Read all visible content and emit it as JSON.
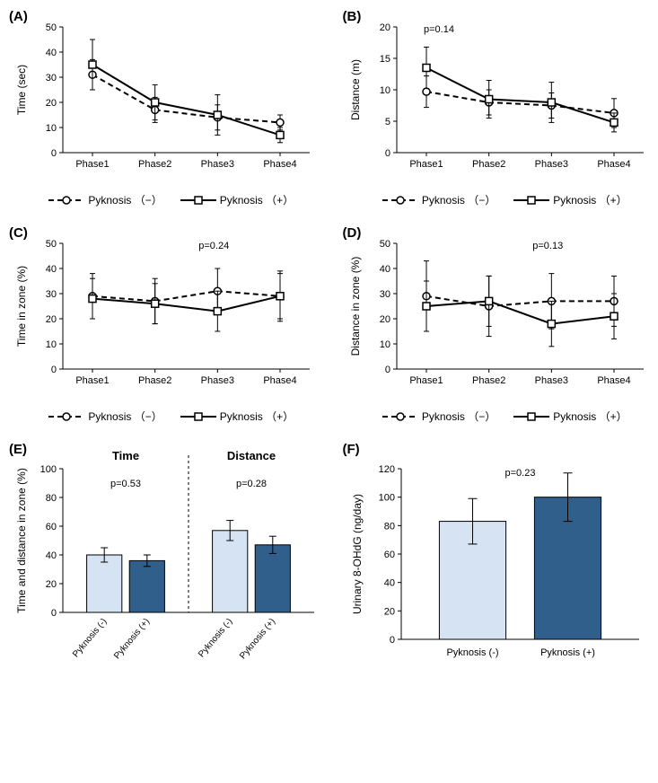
{
  "figure": {
    "background_color": "#ffffff",
    "text_color": "#000000",
    "font_family": "Arial",
    "panel_label_fontsize": 15,
    "axis_label_fontsize": 12,
    "tick_label_fontsize": 11,
    "p_value_fontsize": 11,
    "legend_fontsize": 12
  },
  "legend_common": {
    "series_neg": {
      "label": "Pyknosis （−）",
      "marker": "circle",
      "line_dash": "6,4",
      "line_width": 2,
      "color": "#000000"
    },
    "series_pos": {
      "label": "Pyknosis （+）",
      "marker": "square",
      "line_dash": "none",
      "line_width": 2,
      "color": "#000000"
    }
  },
  "panels": {
    "A": {
      "label": "(A)",
      "type": "line",
      "ylabel": "Time (sec)",
      "categories": [
        "Phase1",
        "Phase2",
        "Phase3",
        "Phase4"
      ],
      "ylim": [
        0,
        50
      ],
      "ytick_step": 10,
      "series": {
        "neg": {
          "values": [
            31,
            17,
            14,
            12
          ],
          "err": [
            6,
            5,
            5,
            3
          ]
        },
        "pos": {
          "values": [
            35,
            20,
            15,
            7
          ],
          "err": [
            10,
            7,
            8,
            3
          ]
        }
      }
    },
    "B": {
      "label": "(B)",
      "type": "line",
      "ylabel": "Distance (m)",
      "p_value": "p=0.14",
      "p_pos": "top-left",
      "categories": [
        "Phase1",
        "Phase2",
        "Phase3",
        "Phase4"
      ],
      "ylim": [
        0,
        20
      ],
      "ytick_step": 5,
      "series": {
        "neg": {
          "values": [
            9.7,
            8.0,
            7.5,
            6.3
          ],
          "err": [
            2.5,
            2.0,
            2.0,
            2.3
          ]
        },
        "pos": {
          "values": [
            13.5,
            8.5,
            8.0,
            4.8
          ],
          "err": [
            3.3,
            3.0,
            3.2,
            1.5
          ]
        }
      }
    },
    "C": {
      "label": "(C)",
      "type": "line",
      "ylabel": "Time in zone (%)",
      "p_value": "p=0.24",
      "p_pos": "top-center",
      "categories": [
        "Phase1",
        "Phase2",
        "Phase3",
        "Phase4"
      ],
      "ylim": [
        0,
        50
      ],
      "ytick_step": 10,
      "series": {
        "neg": {
          "values": [
            29,
            27,
            31,
            29
          ],
          "err": [
            9,
            9,
            9,
            10
          ]
        },
        "pos": {
          "values": [
            28,
            26,
            23,
            29
          ],
          "err": [
            8,
            8,
            8,
            9
          ]
        }
      }
    },
    "D": {
      "label": "(D)",
      "type": "line",
      "ylabel": "Distance in zone (%)",
      "p_value": "p=0.13",
      "p_pos": "top-center",
      "categories": [
        "Phase1",
        "Phase2",
        "Phase3",
        "Phase4"
      ],
      "ylim": [
        0,
        50
      ],
      "ytick_step": 10,
      "series": {
        "neg": {
          "values": [
            29,
            25,
            27,
            27
          ],
          "err": [
            14,
            12,
            11,
            10
          ]
        },
        "pos": {
          "values": [
            25,
            27,
            18,
            21
          ],
          "err": [
            10,
            10,
            9,
            9
          ]
        }
      }
    },
    "E": {
      "label": "(E)",
      "type": "bar",
      "ylabel": "Time and distance in zone (%)",
      "ylim": [
        0,
        100
      ],
      "ytick_step": 20,
      "groups": [
        {
          "heading": "Time",
          "p_value": "p=0.53",
          "bars": [
            {
              "label": "Pyknosis (-)",
              "value": 40,
              "err": 5,
              "color": "#d6e3f3"
            },
            {
              "label": "Pyknosis (+)",
              "value": 36,
              "err": 4,
              "color": "#2f5f8a"
            }
          ]
        },
        {
          "heading": "Distance",
          "p_value": "p=0.28",
          "bars": [
            {
              "label": "Pyknosis (-)",
              "value": 57,
              "err": 7,
              "color": "#d6e3f3"
            },
            {
              "label": "Pyknosis (+)",
              "value": 47,
              "err": 6,
              "color": "#2f5f8a"
            }
          ]
        }
      ],
      "bar_width": 0.65,
      "bar_border": "#000000"
    },
    "F": {
      "label": "(F)",
      "type": "bar",
      "ylabel": "Urinary 8-OHdG (ng/day)",
      "p_value": "p=0.23",
      "ylim": [
        0,
        120
      ],
      "ytick_step": 20,
      "bars": [
        {
          "label": "Pyknosis (-)",
          "value": 83,
          "err": 16,
          "color": "#d6e3f3"
        },
        {
          "label": "Pyknosis (+)",
          "value": 100,
          "err": 17,
          "color": "#2f5f8a"
        }
      ],
      "bar_width": 0.55,
      "bar_border": "#000000"
    }
  }
}
